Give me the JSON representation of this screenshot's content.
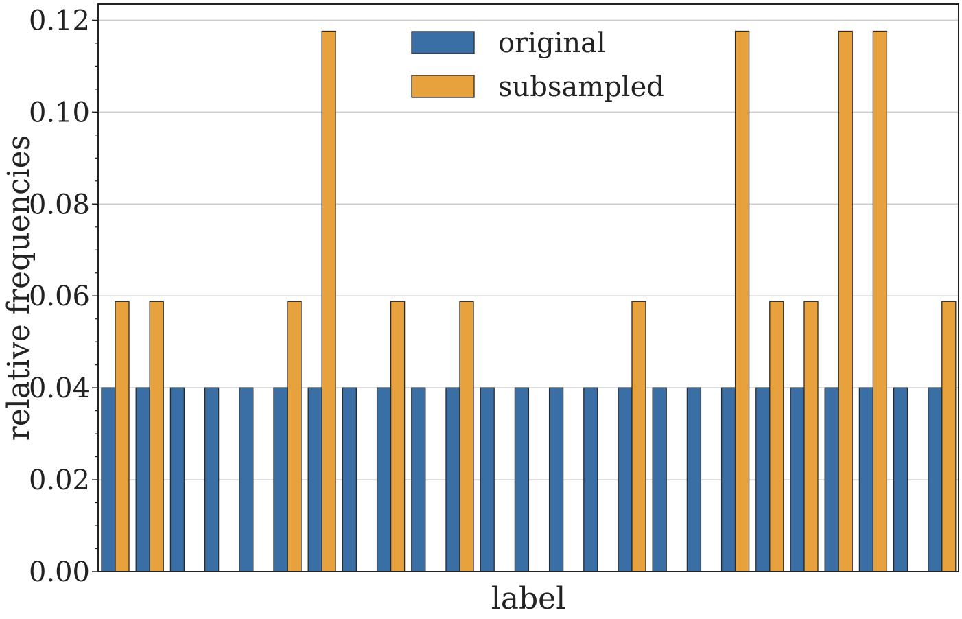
{
  "chart_data": {
    "type": "bar",
    "xlabel": "label",
    "ylabel": "relative frequencies",
    "ylim": [
      0,
      0.1235
    ],
    "yticks": [
      "0.00",
      "0.02",
      "0.04",
      "0.06",
      "0.08",
      "0.10",
      "0.12"
    ],
    "grid": "horizontal",
    "legend_position": "top-center",
    "colors": {
      "original": "#3a6fa5",
      "subsampled": "#e8a23d"
    },
    "series": [
      {
        "name": "original",
        "values": [
          0.04,
          0.04,
          0.04,
          0.04,
          0.04,
          0.04,
          0.04,
          0.04,
          0.04,
          0.04,
          0.04,
          0.04,
          0.04,
          0.04,
          0.04,
          0.04,
          0.04,
          0.04,
          0.04,
          0.04,
          0.04,
          0.04,
          0.04,
          0.04,
          0.04
        ]
      },
      {
        "name": "subsampled",
        "values": [
          0.0588,
          0.0588,
          0,
          0,
          0,
          0.0588,
          0.1176,
          0,
          0.0588,
          0,
          0.0588,
          0,
          0,
          0,
          0,
          0.0588,
          0,
          0,
          0.1176,
          0.0588,
          0.0588,
          0.1176,
          0.1176,
          0,
          0.0588
        ]
      }
    ]
  }
}
